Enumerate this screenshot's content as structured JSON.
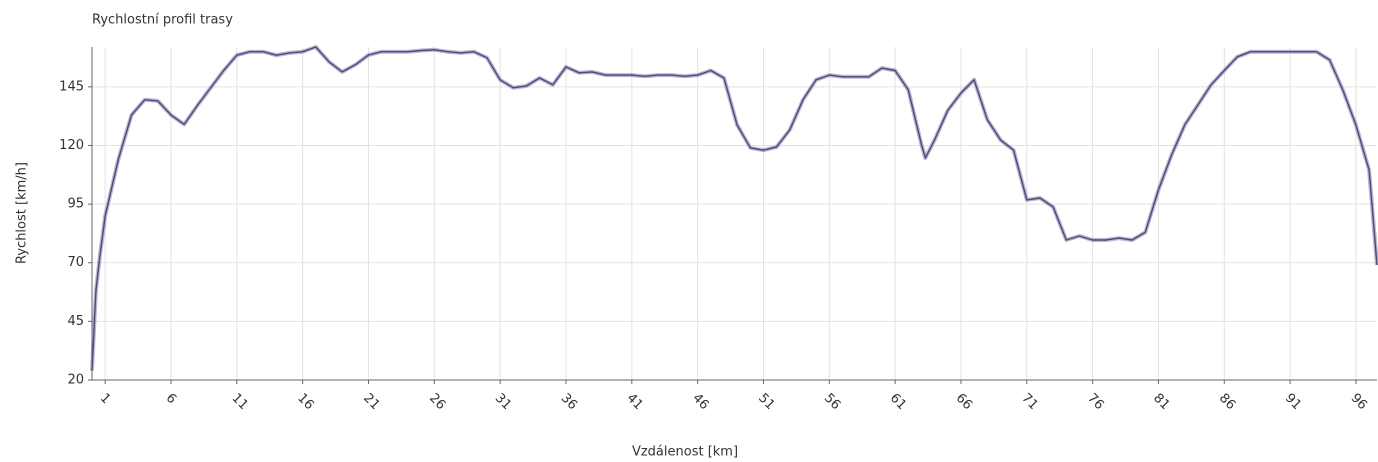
{
  "chart_data": {
    "type": "line",
    "title": "Rychlostní profil trasy",
    "x_label": "Vzdálenost [km]",
    "y_label": "Rychlost [km/h]",
    "x": [
      0,
      0.3,
      0.6,
      1,
      2,
      3,
      4,
      5,
      6,
      7,
      8,
      9,
      10,
      11,
      12,
      13,
      14,
      15,
      16,
      17,
      18,
      19,
      20,
      21,
      22,
      23,
      24,
      25,
      26,
      27,
      28,
      29,
      30,
      31,
      32,
      33,
      34,
      35,
      36,
      37,
      38,
      39,
      40,
      41,
      42,
      43,
      44,
      45,
      46,
      47,
      48,
      49,
      50,
      51,
      52,
      53,
      54,
      55,
      56,
      57,
      58,
      59,
      60,
      61,
      62,
      63,
      63.3,
      64,
      65,
      66,
      67,
      68,
      69,
      70,
      71,
      72,
      73,
      74,
      75,
      76,
      77,
      78,
      79,
      80,
      81,
      82,
      83,
      84,
      85,
      86,
      87,
      88,
      89,
      90,
      91,
      92,
      93,
      94,
      95,
      96,
      97,
      97.6
    ],
    "series": [
      {
        "name": "Rychlost",
        "color": "#7c7cae",
        "values": [
          24,
          58,
          73,
          90,
          114,
          133,
          139.5,
          139,
          133,
          129,
          137,
          144.5,
          152,
          158.5,
          160,
          160,
          158.5,
          159.5,
          160,
          162,
          155.7,
          151.4,
          154.4,
          158.6,
          160,
          160,
          160,
          160.5,
          160.8,
          160,
          159.5,
          160,
          157.4,
          148,
          144.6,
          145.4,
          148.8,
          145.9,
          153.5,
          151,
          151.4,
          150,
          150,
          150,
          149.5,
          150,
          150,
          149.5,
          150,
          152,
          148.8,
          128.8,
          119,
          118,
          119.4,
          126.7,
          139.5,
          148,
          150,
          149.3,
          149.3,
          149.3,
          153,
          152,
          143.7,
          120.3,
          114.7,
          122.4,
          135,
          142.4,
          148,
          131,
          122.4,
          118,
          96.8,
          97.6,
          93.8,
          79.7,
          81.4,
          79.7,
          79.7,
          80.5,
          79.7,
          83,
          101,
          116,
          128.8,
          137.3,
          145.9,
          152,
          157.8,
          160,
          160,
          160,
          160,
          160,
          160,
          156.5,
          143.7,
          128.8,
          109.6,
          69
        ]
      }
    ],
    "xlim": [
      0,
      97.6
    ],
    "ylim": [
      20,
      162
    ],
    "xticks": [
      1,
      6,
      11,
      16,
      21,
      26,
      31,
      36,
      41,
      46,
      51,
      56,
      61,
      66,
      71,
      76,
      81,
      86,
      91,
      96
    ],
    "yticks": [
      20,
      45,
      70,
      95,
      120,
      145
    ],
    "grid": true
  }
}
